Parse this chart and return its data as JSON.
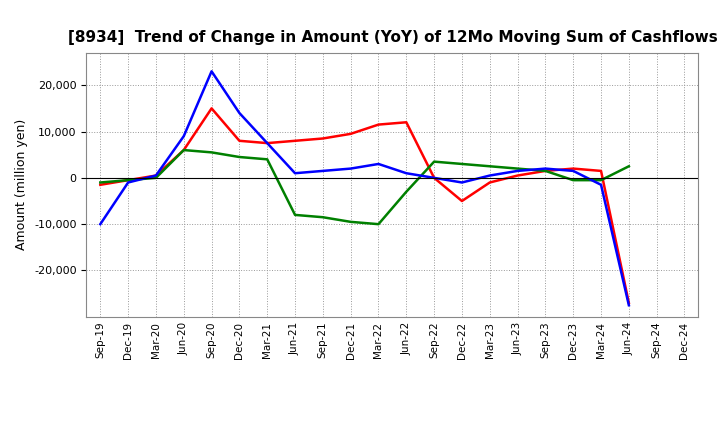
{
  "title": "[8934]  Trend of Change in Amount (YoY) of 12Mo Moving Sum of Cashflows",
  "ylabel": "Amount (million yen)",
  "x_labels": [
    "Sep-19",
    "Dec-19",
    "Mar-20",
    "Jun-20",
    "Sep-20",
    "Dec-20",
    "Mar-21",
    "Jun-21",
    "Sep-21",
    "Dec-21",
    "Mar-22",
    "Jun-22",
    "Sep-22",
    "Dec-22",
    "Mar-23",
    "Jun-23",
    "Sep-23",
    "Dec-23",
    "Mar-24",
    "Jun-24",
    "Sep-24",
    "Dec-24"
  ],
  "operating": [
    -1500,
    -500,
    500,
    6000,
    15000,
    8000,
    7500,
    8000,
    8500,
    9500,
    11500,
    12000,
    0,
    -5000,
    -1000,
    500,
    1500,
    2000,
    1500,
    -27000,
    null,
    null
  ],
  "investing": [
    -1000,
    -500,
    0,
    6000,
    5500,
    4500,
    4000,
    -8000,
    -8500,
    -9500,
    -10000,
    -3000,
    3500,
    3000,
    2500,
    2000,
    1500,
    -500,
    -500,
    2500,
    null,
    null
  ],
  "free": [
    -10000,
    -1000,
    500,
    9000,
    23000,
    14000,
    7500,
    1000,
    1500,
    2000,
    3000,
    1000,
    0,
    -1000,
    500,
    1500,
    2000,
    1500,
    -1500,
    -27500,
    null,
    null
  ],
  "ylim": [
    -30000,
    27000
  ],
  "yticks": [
    -20000,
    -10000,
    0,
    10000,
    20000
  ],
  "operating_color": "#ff0000",
  "investing_color": "#008000",
  "free_color": "#0000ff",
  "line_width": 1.8,
  "bg_color": "#ffffff",
  "plot_bg_color": "#ffffff",
  "grid_color": "#999999"
}
